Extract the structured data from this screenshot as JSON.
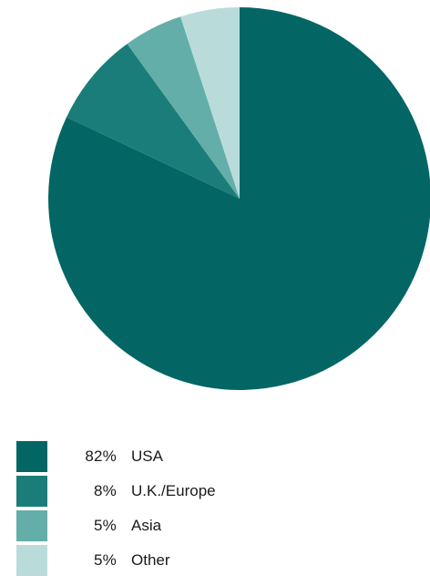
{
  "chart_data": {
    "type": "pie",
    "categories": [
      "USA",
      "U.K./Europe",
      "Asia",
      "Other"
    ],
    "values": [
      82,
      8,
      5,
      5
    ],
    "value_labels": [
      "82%",
      "8%",
      "5%",
      "5%"
    ],
    "colors": [
      "#036664",
      "#1b7d79",
      "#64aea9",
      "#b9dcdb"
    ],
    "start": "12 o'clock",
    "direction": "clockwise",
    "legend_position": "bottom-left"
  }
}
